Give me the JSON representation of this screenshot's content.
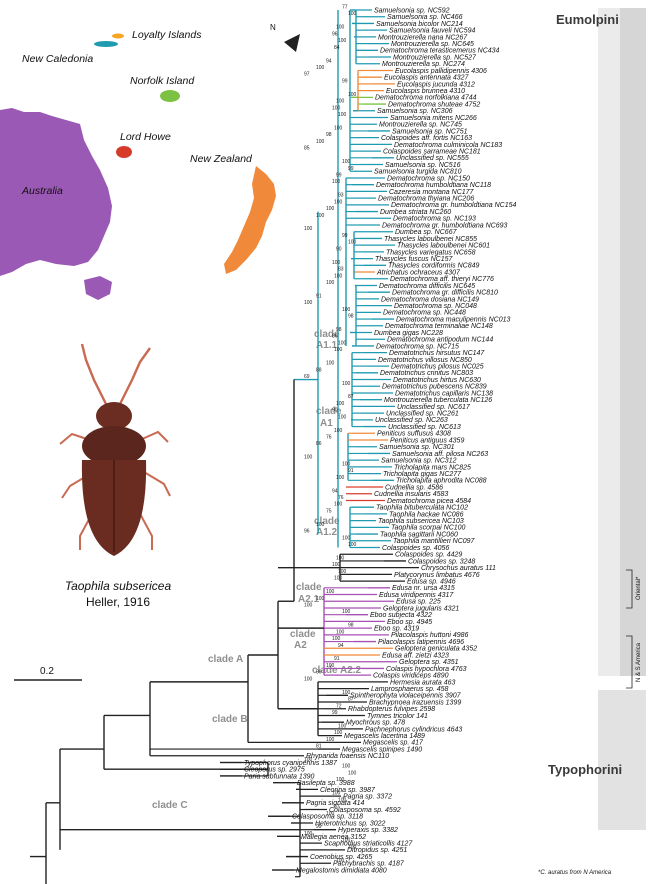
{
  "colors": {
    "eumolpini": "#1e9bb0",
    "loyalty": "#f5a623",
    "norfolk": "#7cc242",
    "lordhowe": "#d63b2a",
    "newzealand": "#f08a3a",
    "australia": "#9b59b6",
    "clade_a2_1": "#a84fb5",
    "black": "#222222",
    "bar": "#c9c9c9"
  },
  "map": {
    "labels": {
      "loyalty": "Loyalty Islands",
      "new_caledonia": "New Caledonia",
      "norfolk": "Norfolk Island",
      "lord_howe": "Lord Howe",
      "new_zealand": "New Zealand",
      "australia": "Australia"
    },
    "north_label": "N"
  },
  "beetle": {
    "species": "Taophila subsericea",
    "authority": "Heller, 1916"
  },
  "scale_bar": {
    "label": "0.2"
  },
  "tribes": {
    "eumolpini": "Eumolpini",
    "typophorini": "Typophorini"
  },
  "groups": {
    "oriental": "Oriental*",
    "ns_america": "N & S America"
  },
  "clades": {
    "a1_1": [
      "clade",
      "A1.1"
    ],
    "a1": [
      "clade",
      "A1"
    ],
    "a1_2": [
      "clade",
      "A1.2"
    ],
    "a2_1": [
      "clade",
      "A2.1"
    ],
    "a2": [
      "clade",
      "A2"
    ],
    "a2_2": "clade A2.2",
    "a": "clade A",
    "b": "clade B",
    "c": "clade C"
  },
  "footnote": "*C. auratus from N America",
  "tips": [
    "Samuelsonia sp. NC592",
    "Samuelsonia sp. NC466",
    "Samuelsonia bicolor NC214",
    "Samuelsonia fauveli NC594",
    "Montrouzierella nana NC267",
    "Montrouzierella sp. NC645",
    "Dematochroma terasticemerus NC434",
    "Montrouzierella sp. NC527",
    "Montrouzierella sp. NC274",
    "Eucolaspis pallidipennis 4306",
    "Eucolaspis antennata 4327",
    "Eucolaspis jucunda 4312",
    "Eucolaspis brunnea 4310",
    "Dematochroma norfolkiana 4744",
    "Dematochroma shuteae 4752",
    "Samuelsonia sp. NC306",
    "Samuelsonia mitens NC266",
    "Montrouzierella sp. NC745",
    "Samuelsonia sp. NC751",
    "Colaspoides aff. fortis NC163",
    "Dematochroma culminicola NC183",
    "Colaspoides sarrameae NC181",
    "Unclassified sp. NC555",
    "Samuelsonia sp. NC516",
    "Samuelsonia turgida NC810",
    "Dematochroma sp. NC150",
    "Dematochroma humboldtiana NC118",
    "Cazeresia montana NC177",
    "Dematochroma thyiana NC206",
    "Dematochroma gr. humboldtiana NC154",
    "Dumbea striata NC260",
    "Dematochroma sp. NC193",
    "Dematochroma gr. humboldtiana NC693",
    "Dumbea sp. NC667",
    "Thasycles laboulbenei NC855",
    "Thasycles laboulbenei NC601",
    "Thasycles variegatus NC658",
    "Thasycles fuscus NC157",
    "Thasycles cordiformis NC849",
    "Atrichatus ochraceus 4307",
    "Dematochroma aff. thieryi NC776",
    "Dematochroma difficilis NC645",
    "Dematochroma gr. difficilis NC810",
    "Dematochroma dosiana NC149",
    "Dematochroma sp. NC048",
    "Dematochroma sp. NC448",
    "Dematochroma maculipennis NC013",
    "Dematochroma terminaliae NC148",
    "Dumbea gigas NC228",
    "Dematochroma antipodum NC144",
    "Dematochroma sp. NC715",
    "Dematotrichus hirsutus NC147",
    "Dematotrichus villosus NC850",
    "Dematotrichus pilosus NC025",
    "Dematotrichus crinitus NC803",
    "Dematotrichus hirtus NC630",
    "Dematotrichus pubescens NC839",
    "Dematotrichus capillaris NC138",
    "Montrouzierella tuberculata NC126",
    "Unclassified sp. NC617",
    "Unclassified sp. NC261",
    "Unclassified sp. NC263",
    "Unclassified sp. NC613",
    "Peniticus suffusus 4308",
    "Peniticus antiguus 4359",
    "Samuelsonia sp. NC301",
    "Samuelsonia aff. pilosa NC263",
    "Samuelsonia sp. NC312",
    "Tricholapita mars NC825",
    "Tricholapita gigas NC277",
    "Tricholapita aphrodita NC088",
    "Cudnellia sp. 4586",
    "Cudnellia insularis 4583",
    "Dematochroma picea 4584",
    "Taophila bituberculata NC102",
    "Taophila hackae NC086",
    "Taophila subsericea NC103",
    "Taophila scorpai NC100",
    "Taophila sagittarii NC060",
    "Taophila mantillieri NC097",
    "Colaspoides sp. 4056",
    "Colaspoides sp. 4429",
    "Colaspoides sp. 3248",
    "Chrysochus auratus 111",
    "Platycorynus limbatus 4676",
    "Edusa sp. 4946",
    "Edusa nr. ursa 4315",
    "Edusa viridipennis 4317",
    "Edusa sp. 225",
    "Geloptera jugularis 4321",
    "Eboo subjecta 4322",
    "Eboo sp. 4945",
    "Eboo sp. 4319",
    "Pilacolaspis huttoni 4986",
    "Pilacolaspis latipennis 4696",
    "Geloptera geniculata 4352",
    "Edusa aff. zietzi 4323",
    "Geloptera sp. 4351",
    "Colaspis hypochlora 4763",
    "Colaspis viridiceps 4890",
    "Hermesia aurata 463",
    "Lamprosphaerus sp. 458",
    "Spintherophyta violaceipennis 3907",
    "Brachypnoea irazuensis 1399",
    "Rhabdopterus fulvipes 2598",
    "Tymnes tricolor 141",
    "Myochrous sp. 478",
    "Pachnephorus cylindricus 4643",
    "Megascelis lacertina 1489",
    "Megascelis sp. 417",
    "Megascelis spinipes 1490",
    "Rhyparida foaensis NC110",
    "Typophorus cyanipennis 1387",
    "Cleoporus sp. 2975",
    "Paria subfunnata 1390",
    "Basilepta sp. 3988",
    "Cleorina sp. 3987",
    "Pagria sp. 3372",
    "Pagria signata 414",
    "Colasposoma sp. 4592",
    "Colasposoma sp. 3118",
    "Heterotrichus sp. 3022",
    "Hyperaxis sp. 3382",
    "Mallegia aenea 3152",
    "Scaphodius striaticollis 4127",
    "Ditropidus sp. 4251",
    "Coenobius sp. 4265",
    "Pachybrachis sp. 4187",
    "Megalostomis dimidiata 4080"
  ],
  "supports": [
    "77",
    "100",
    "100",
    "96",
    "100",
    "84",
    "94",
    "100",
    "97",
    "99",
    "100",
    "100",
    "100",
    "100",
    "100",
    "98",
    "100",
    "85",
    "100",
    "99",
    "99",
    "100",
    "93",
    "100",
    "100",
    "100",
    "100",
    "99",
    "100",
    "90",
    "100",
    "83",
    "100",
    "100",
    "91",
    "100",
    "100",
    "98",
    "98",
    "86",
    "100",
    "100",
    "100",
    "88",
    "69",
    "100",
    "87",
    "100",
    "90",
    "100",
    "100",
    "76",
    "86",
    "100",
    "100",
    "91",
    "100",
    "94",
    "76",
    "100",
    "75",
    "100",
    "96",
    "100",
    "100",
    "100",
    "100",
    "100",
    "100",
    "100",
    "100",
    "100",
    "100",
    "98",
    "100",
    "100",
    "94",
    "91",
    "100",
    "99",
    "100",
    "100",
    "87",
    "72",
    "99",
    "100",
    "100",
    "100",
    "81",
    "100",
    "100",
    "100",
    "100",
    "100",
    "100",
    "87",
    "100",
    "99",
    "100",
    "100",
    "100",
    "100"
  ]
}
